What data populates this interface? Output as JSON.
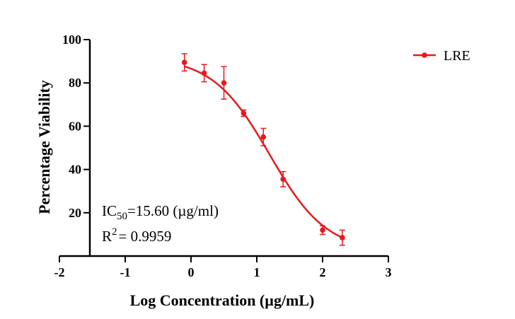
{
  "chart_data": {
    "type": "scatter",
    "xlabel": "Log Concentration (µg/mL)",
    "ylabel": "Percentage Viability",
    "xlim": [
      -2,
      3
    ],
    "ylim": [
      0,
      100
    ],
    "x_ticks": [
      -2,
      -1,
      0,
      1,
      2,
      3
    ],
    "x_tick_labels": [
      "-2",
      "-1",
      "0",
      "1",
      "2",
      "3"
    ],
    "y_ticks": [
      20,
      40,
      60,
      80,
      100
    ],
    "y_tick_labels": [
      "20",
      "40",
      "60",
      "80",
      "100"
    ],
    "grid": false,
    "legend_position": "top-right",
    "color": "#e8191c",
    "series": [
      {
        "name": "LRE",
        "x": [
          -0.1,
          0.2,
          0.5,
          0.8,
          1.1,
          1.4,
          2.0,
          2.3
        ],
        "y": [
          89.5,
          84.5,
          80.0,
          66.0,
          55.0,
          35.5,
          12.0,
          8.5
        ],
        "error": [
          4.0,
          4.0,
          7.5,
          1.5,
          4.0,
          3.5,
          2.0,
          3.5
        ],
        "fit": {
          "model": "sigmoidal dose-response",
          "top": 92,
          "bottom": 2,
          "log_ic50": 1.193,
          "hill_slope": -1.0,
          "x_range": [
            -0.1,
            2.3
          ]
        }
      }
    ],
    "annotations": {
      "ic50_prefix": "IC",
      "ic50_subscript": "50",
      "ic50_value": "=15.60 (µg/ml)",
      "r2_prefix": "R",
      "r2_superscript": "2",
      "r2_value": "= 0.9959"
    }
  }
}
